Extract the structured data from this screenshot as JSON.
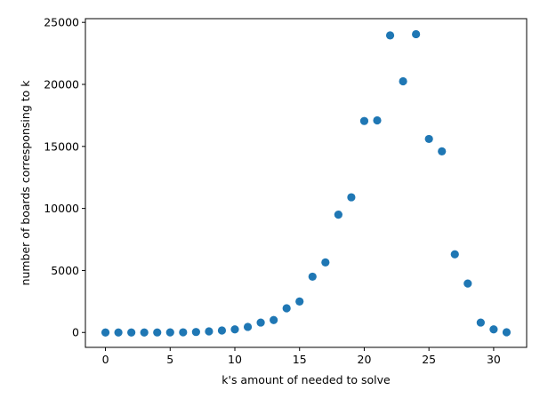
{
  "chart_data": {
    "type": "scatter",
    "title": "",
    "xlabel": "k's amount of needed to solve",
    "ylabel": "number of boards corresponsing to k",
    "xlim": [
      -1.55,
      32.55
    ],
    "ylim": [
      -1200,
      25300
    ],
    "xticks": [
      0,
      5,
      10,
      15,
      20,
      25,
      30
    ],
    "yticks": [
      0,
      5000,
      10000,
      15000,
      20000,
      25000
    ],
    "xtick_labels": [
      "0",
      "5",
      "10",
      "15",
      "20",
      "25",
      "30"
    ],
    "ytick_labels": [
      "0",
      "5000",
      "10000",
      "15000",
      "20000",
      "25000"
    ],
    "grid": false,
    "legend": "none",
    "marker_color": "#1f77b4",
    "x": [
      0,
      1,
      2,
      3,
      4,
      5,
      6,
      7,
      8,
      9,
      10,
      11,
      12,
      13,
      14,
      15,
      16,
      17,
      18,
      19,
      20,
      21,
      22,
      23,
      24,
      25,
      26,
      27,
      28,
      29,
      30,
      31
    ],
    "y": [
      1,
      1,
      1,
      2,
      3,
      6,
      15,
      40,
      90,
      160,
      250,
      450,
      800,
      1000,
      1950,
      2500,
      4500,
      5650,
      9500,
      10900,
      17050,
      17100,
      23950,
      20250,
      24050,
      15600,
      14600,
      6300,
      3950,
      800,
      250,
      20
    ]
  }
}
